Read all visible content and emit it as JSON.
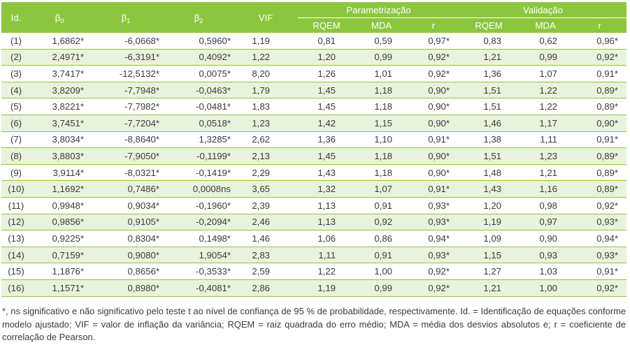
{
  "header": {
    "id": "Id.",
    "b0_base": "β",
    "b0_sub": "0",
    "b1_base": "β",
    "b1_sub": "1",
    "b2_base": "β",
    "b2_sub": "2",
    "vif": "VIF",
    "group_param": "Parametrização",
    "group_valid": "Validação",
    "rqem": "RQEM",
    "mda": "MDA",
    "r": "r"
  },
  "rows": [
    {
      "id": "(1)",
      "b0": "1,6862*",
      "b1": "-6,0668*",
      "b2": "0,5960*",
      "vif": "1,19",
      "p_rqem": "0,81",
      "p_mda": "0,59",
      "p_r": "0,97*",
      "v_rqem": "0,83",
      "v_mda": "0,62",
      "v_r": "0,96*"
    },
    {
      "id": "(2)",
      "b0": "2,4971*",
      "b1": "-6,3191*",
      "b2": "0,4092*",
      "vif": "1,22",
      "p_rqem": "1,20",
      "p_mda": "0,99",
      "p_r": "0,92*",
      "v_rqem": "1,21",
      "v_mda": "0,99",
      "v_r": "0,92*"
    },
    {
      "id": "(3)",
      "b0": "3,7417*",
      "b1": "-12,5132*",
      "b2": "0,0075*",
      "vif": "8,20",
      "p_rqem": "1,26",
      "p_mda": "1,01",
      "p_r": "0,92*",
      "v_rqem": "1,36",
      "v_mda": "1,07",
      "v_r": "0,91*"
    },
    {
      "id": "(4)",
      "b0": "3,8209*",
      "b1": "-7,7948*",
      "b2": "-0,0463*",
      "vif": "1,79",
      "p_rqem": "1,45",
      "p_mda": "1,18",
      "p_r": "0,90*",
      "v_rqem": "1,51",
      "v_mda": "1,22",
      "v_r": "0,89*"
    },
    {
      "id": "(5)",
      "b0": "3,8221*",
      "b1": "-7,7982*",
      "b2": "-0,0481*",
      "vif": "1,83",
      "p_rqem": "1,45",
      "p_mda": "1,18",
      "p_r": "0,90*",
      "v_rqem": "1,51",
      "v_mda": "1,22",
      "v_r": "0,89*"
    },
    {
      "id": "(6)",
      "b0": "3,7451*",
      "b1": "-7,7204*",
      "b2": "0,0518*",
      "vif": "1,23",
      "p_rqem": "1,42",
      "p_mda": "1,15",
      "p_r": "0,90*",
      "v_rqem": "1,46",
      "v_mda": "1,17",
      "v_r": "0,90*"
    },
    {
      "id": "(7)",
      "b0": "3,8034*",
      "b1": "-8,8640*",
      "b2": "1,3285*",
      "vif": "2,62",
      "p_rqem": "1,36",
      "p_mda": "1,10",
      "p_r": "0,91*",
      "v_rqem": "1,38",
      "v_mda": "1,11",
      "v_r": "0,91*"
    },
    {
      "id": "(8)",
      "b0": "3,8803*",
      "b1": "-7,9050*",
      "b2": "-0,1199*",
      "vif": "2,13",
      "p_rqem": "1,45",
      "p_mda": "1,18",
      "p_r": "0,90*",
      "v_rqem": "1,51",
      "v_mda": "1,23",
      "v_r": "0,89*"
    },
    {
      "id": "(9)",
      "b0": "3,9114*",
      "b1": "-8,0321*",
      "b2": "-0,1419*",
      "vif": "2,29",
      "p_rqem": "1,43",
      "p_mda": "1,18",
      "p_r": "0,90*",
      "v_rqem": "1,48",
      "v_mda": "1,21",
      "v_r": "0,89*"
    },
    {
      "id": "(10)",
      "b0": "1,1692*",
      "b1": "0,7486*",
      "b2": "0,0008ns",
      "vif": "3,65",
      "p_rqem": "1,32",
      "p_mda": "1,07",
      "p_r": "0,91*",
      "v_rqem": "1,43",
      "v_mda": "1,16",
      "v_r": "0,89*"
    },
    {
      "id": "(11)",
      "b0": "0,9948*",
      "b1": "0,9034*",
      "b2": "-0,1960*",
      "vif": "2,39",
      "p_rqem": "1,13",
      "p_mda": "0,91",
      "p_r": "0,93*",
      "v_rqem": "1,20",
      "v_mda": "0,98",
      "v_r": "0,92*"
    },
    {
      "id": "(12)",
      "b0": "0,9856*",
      "b1": "0,9105*",
      "b2": "-0,2094*",
      "vif": "2,46",
      "p_rqem": "1,13",
      "p_mda": "0,92",
      "p_r": "0,93*",
      "v_rqem": "1,19",
      "v_mda": "0,97",
      "v_r": "0,93*"
    },
    {
      "id": "(13)",
      "b0": "0,9225*",
      "b1": "0,8304*",
      "b2": "0,1498*",
      "vif": "1,46",
      "p_rqem": "1,06",
      "p_mda": "0,86",
      "p_r": "0,94*",
      "v_rqem": "1,09",
      "v_mda": "0,90",
      "v_r": "0,94*"
    },
    {
      "id": "(14)",
      "b0": "0,7159*",
      "b1": "0,9080*",
      "b2": "1,9054*",
      "vif": "2,83",
      "p_rqem": "1,11",
      "p_mda": "0,91",
      "p_r": "0,93*",
      "v_rqem": "1,15",
      "v_mda": "0,93",
      "v_r": "0,93*"
    },
    {
      "id": "(15)",
      "b0": "1,1876*",
      "b1": "0,8656*",
      "b2": "-0,3533*",
      "vif": "2,59",
      "p_rqem": "1,22",
      "p_mda": "1,00",
      "p_r": "0,92*",
      "v_rqem": "1,27",
      "v_mda": "1,03",
      "v_r": "0,91*"
    },
    {
      "id": "(16)",
      "b0": "1,1571*",
      "b1": "0,8980*",
      "b2": "-0,4081*",
      "vif": "2,86",
      "p_rqem": "1,19",
      "p_mda": "0,99",
      "p_r": "0,92*",
      "v_rqem": "1,21",
      "v_mda": "1,00",
      "v_r": "0,92*"
    }
  ],
  "footnote": "*, ns significativo e não significativo pelo teste t ao nível de confiança de 95 % de probabilidade, respectivamente. Id. = Identificação de equações conforme modelo ajustado; VIF = valor de inflação da variância; RQEM = raiz quadrada do erro médio; MDA = média dos desvios absolutos e; r = coeficiente de correlação de Pearson.",
  "colors": {
    "header_bg": "#8cc63f",
    "row_shade": "#e9f3dc",
    "rule": "#8cc63f",
    "text": "#3a3a3a"
  }
}
